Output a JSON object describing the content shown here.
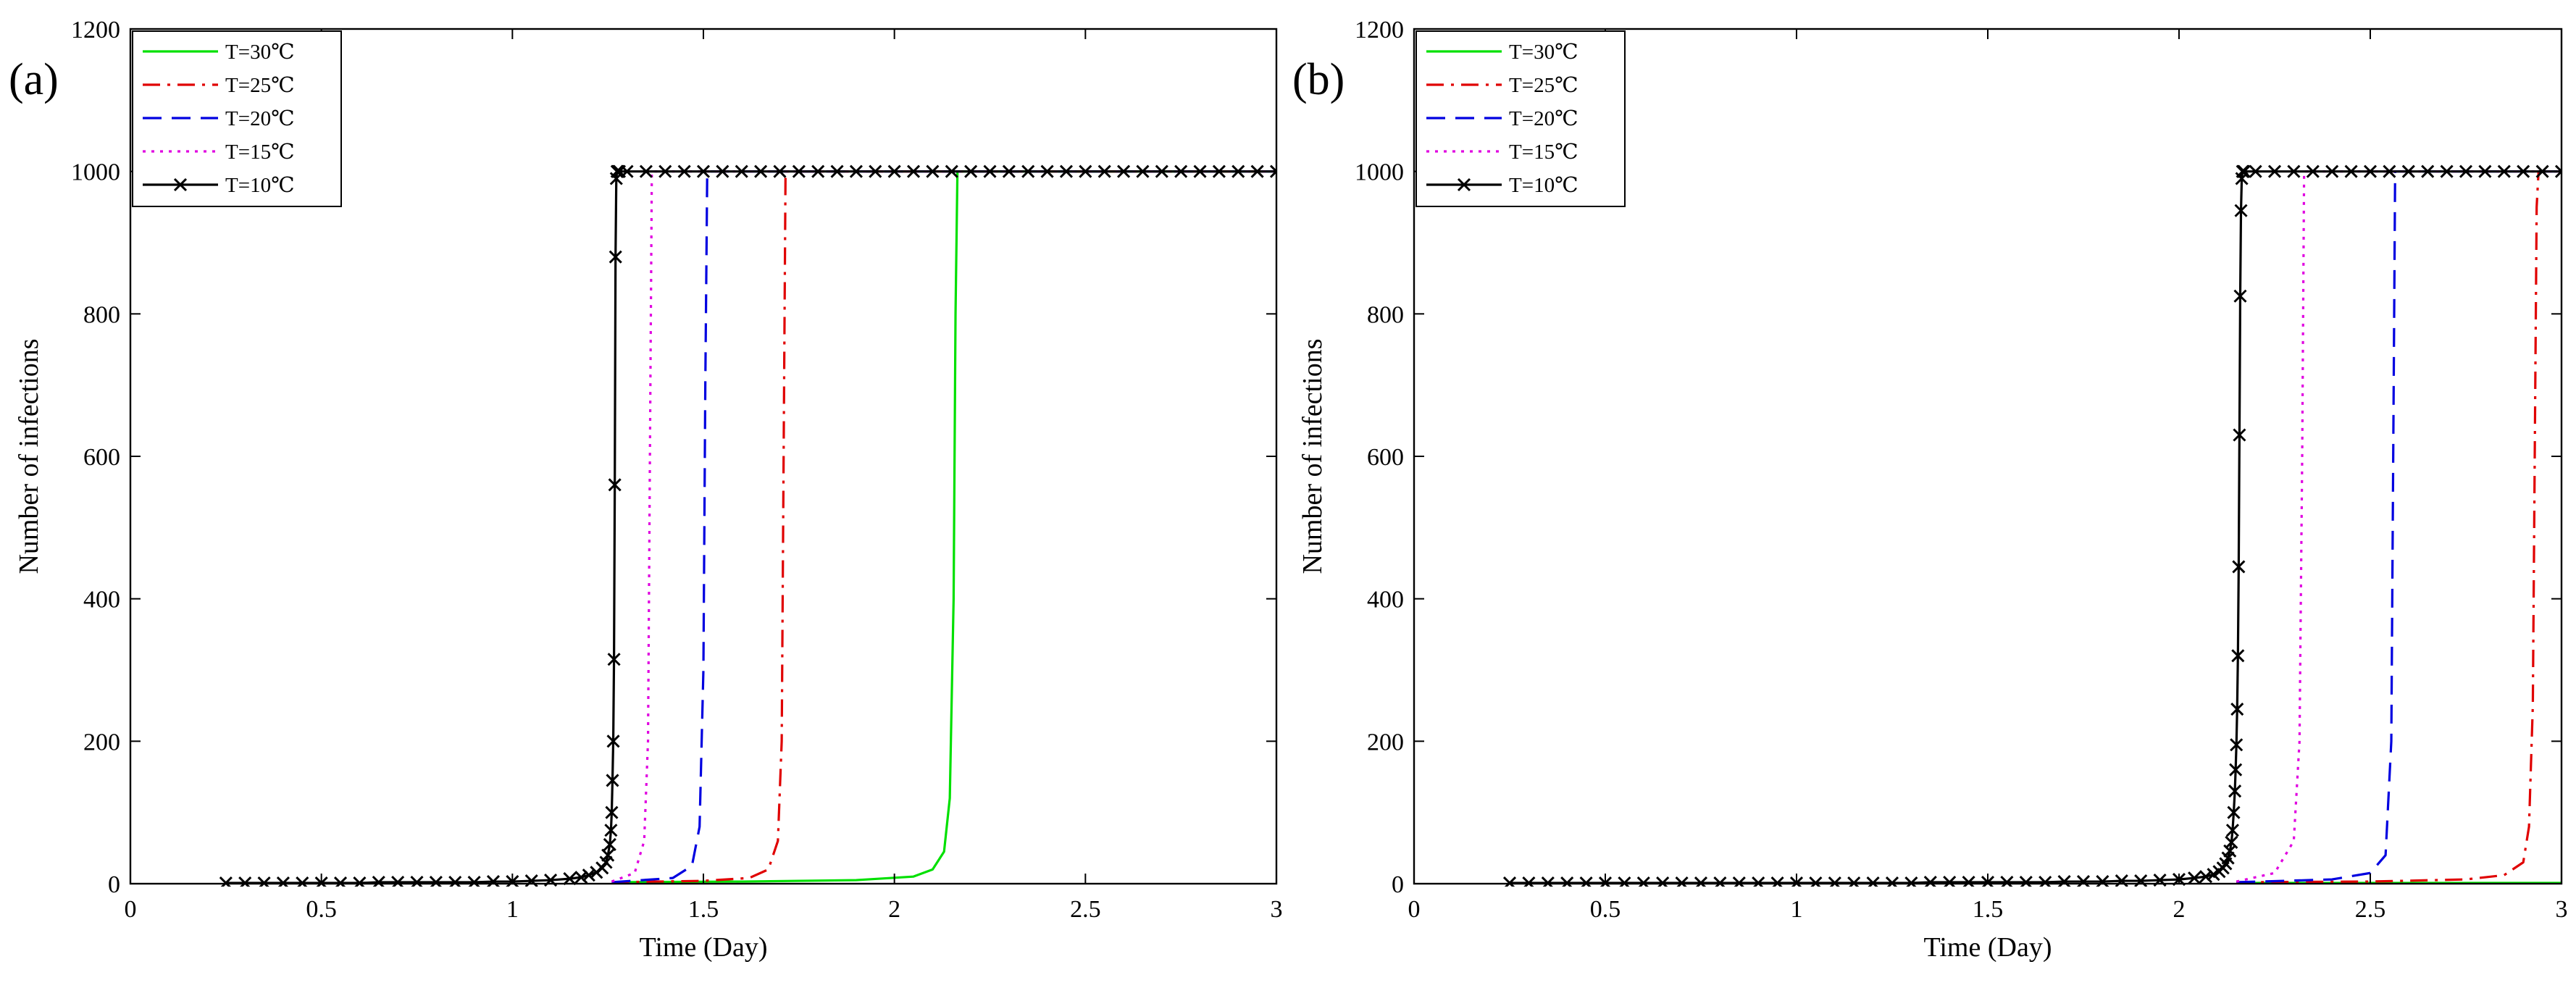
{
  "chart_data": [
    {
      "type": "line",
      "panel_label": "(a)",
      "xlabel": "Time (Day)",
      "ylabel": "Number of infections",
      "xlim": [
        0,
        3
      ],
      "ylim": [
        0,
        1200
      ],
      "xticks": [
        "0",
        "0.5",
        "1",
        "1.5",
        "2",
        "2.5",
        "3"
      ],
      "yticks": [
        "0",
        "200",
        "400",
        "600",
        "800",
        "1000",
        "1200"
      ],
      "grid": false,
      "legend_position": "top-left",
      "series": [
        {
          "name": "T=30℃",
          "color": "#00e000",
          "dash": "solid",
          "marker": "none",
          "x": [
            1.26,
            1.6,
            1.9,
            2.05,
            2.1,
            2.13,
            2.145,
            2.155,
            2.16,
            2.165,
            2.17,
            3.0
          ],
          "y": [
            2,
            3,
            5,
            10,
            20,
            45,
            120,
            400,
            800,
            1000,
            1000,
            1000
          ]
        },
        {
          "name": "T=25℃",
          "color": "#e00000",
          "dash": "dashdot",
          "marker": "none",
          "x": [
            1.26,
            1.5,
            1.62,
            1.67,
            1.695,
            1.705,
            1.71,
            1.715,
            1.72,
            3.0
          ],
          "y": [
            2,
            4,
            8,
            20,
            60,
            200,
            600,
            1000,
            1000,
            1000
          ]
        },
        {
          "name": "T=20℃",
          "color": "#0000e0",
          "dash": "dashed",
          "marker": "none",
          "x": [
            1.26,
            1.42,
            1.47,
            1.49,
            1.5,
            1.505,
            1.51,
            1.52,
            3.0
          ],
          "y": [
            2,
            8,
            25,
            80,
            300,
            700,
            1000,
            1000,
            1000
          ]
        },
        {
          "name": "T=15℃",
          "color": "#e000e0",
          "dash": "dotted",
          "marker": "none",
          "x": [
            1.26,
            1.32,
            1.345,
            1.355,
            1.36,
            1.365,
            1.37,
            3.0
          ],
          "y": [
            3,
            15,
            60,
            200,
            600,
            1000,
            1000,
            1000
          ]
        },
        {
          "name": "T=10℃",
          "color": "#000000",
          "dash": "solid",
          "marker": "x",
          "x": [
            0.25,
            0.3,
            0.35,
            0.4,
            0.45,
            0.5,
            0.55,
            0.6,
            0.65,
            0.7,
            0.75,
            0.8,
            0.85,
            0.9,
            0.95,
            1.0,
            1.05,
            1.1,
            1.15,
            1.18,
            1.2,
            1.22,
            1.235,
            1.245,
            1.25,
            1.255,
            1.258,
            1.26,
            1.262,
            1.264,
            1.266,
            1.268,
            1.27,
            1.272,
            1.274,
            1.276,
            1.278,
            1.28,
            1.3,
            1.35,
            1.4,
            1.45,
            1.5,
            1.55,
            1.6,
            1.65,
            1.7,
            1.75,
            1.8,
            1.85,
            1.9,
            1.95,
            2.0,
            2.05,
            2.1,
            2.15,
            2.2,
            2.25,
            2.3,
            2.35,
            2.4,
            2.45,
            2.5,
            2.55,
            2.6,
            2.65,
            2.7,
            2.75,
            2.8,
            2.85,
            2.9,
            2.95,
            3.0
          ],
          "y": [
            1,
            1,
            1,
            1,
            1,
            1,
            1,
            1,
            2,
            2,
            2,
            2,
            2,
            2,
            3,
            3,
            4,
            5,
            7,
            9,
            12,
            16,
            22,
            30,
            40,
            55,
            75,
            100,
            145,
            200,
            315,
            560,
            880,
            990,
            1000,
            1000,
            1000,
            1000,
            1000,
            1000,
            1000,
            1000,
            1000,
            1000,
            1000,
            1000,
            1000,
            1000,
            1000,
            1000,
            1000,
            1000,
            1000,
            1000,
            1000,
            1000,
            1000,
            1000,
            1000,
            1000,
            1000,
            1000,
            1000,
            1000,
            1000,
            1000,
            1000,
            1000,
            1000,
            1000,
            1000,
            1000,
            1000
          ]
        }
      ]
    },
    {
      "type": "line",
      "panel_label": "(b)",
      "xlabel": "Time (Day)",
      "ylabel": "Number of infections",
      "xlim": [
        0,
        3
      ],
      "ylim": [
        0,
        1200
      ],
      "xticks": [
        "0",
        "0.5",
        "1",
        "1.5",
        "2",
        "2.5",
        "3"
      ],
      "yticks": [
        "0",
        "200",
        "400",
        "600",
        "800",
        "1000",
        "1200"
      ],
      "grid": false,
      "legend_position": "top-left",
      "series": [
        {
          "name": "T=30℃",
          "color": "#00e000",
          "dash": "solid",
          "marker": "none",
          "x": [
            2.15,
            2.5,
            2.8,
            3.0
          ],
          "y": [
            1,
            1,
            1,
            1
          ]
        },
        {
          "name": "T=25℃",
          "color": "#e00000",
          "dash": "dashdot",
          "marker": "none",
          "x": [
            2.15,
            2.5,
            2.75,
            2.85,
            2.9,
            2.915,
            2.925,
            2.93,
            2.935,
            2.94,
            3.0
          ],
          "y": [
            2,
            3,
            6,
            12,
            30,
            80,
            250,
            600,
            950,
            1000,
            1000
          ]
        },
        {
          "name": "T=20℃",
          "color": "#0000e0",
          "dash": "dashed",
          "marker": "none",
          "x": [
            2.15,
            2.4,
            2.5,
            2.54,
            2.555,
            2.56,
            2.565,
            2.57,
            3.0
          ],
          "y": [
            2,
            6,
            15,
            40,
            200,
            600,
            1000,
            1000,
            1000
          ]
        },
        {
          "name": "T=15℃",
          "color": "#e000e0",
          "dash": "dotted",
          "marker": "none",
          "x": [
            2.15,
            2.25,
            2.3,
            2.315,
            2.322,
            2.327,
            2.332,
            3.0
          ],
          "y": [
            3,
            15,
            60,
            200,
            600,
            1000,
            1000,
            1000
          ]
        },
        {
          "name": "T=10℃",
          "color": "#000000",
          "dash": "solid",
          "marker": "x",
          "x": [
            0.25,
            0.3,
            0.35,
            0.4,
            0.45,
            0.5,
            0.55,
            0.6,
            0.65,
            0.7,
            0.75,
            0.8,
            0.85,
            0.9,
            0.95,
            1.0,
            1.05,
            1.1,
            1.15,
            1.2,
            1.25,
            1.3,
            1.35,
            1.4,
            1.45,
            1.5,
            1.55,
            1.6,
            1.65,
            1.7,
            1.75,
            1.8,
            1.85,
            1.9,
            1.95,
            2.0,
            2.04,
            2.07,
            2.09,
            2.105,
            2.115,
            2.122,
            2.128,
            2.133,
            2.137,
            2.14,
            2.143,
            2.146,
            2.148,
            2.15,
            2.152,
            2.154,
            2.156,
            2.158,
            2.16,
            2.162,
            2.164,
            2.166,
            2.168,
            2.17,
            2.2,
            2.25,
            2.3,
            2.35,
            2.4,
            2.45,
            2.5,
            2.55,
            2.6,
            2.65,
            2.7,
            2.75,
            2.8,
            2.85,
            2.9,
            2.95,
            3.0
          ],
          "y": [
            1,
            1,
            1,
            1,
            1,
            1,
            1,
            1,
            1,
            1,
            1,
            1,
            1,
            1,
            1,
            1,
            1,
            1,
            1,
            1,
            1,
            1,
            2,
            2,
            2,
            2,
            2,
            2,
            2,
            3,
            3,
            3,
            4,
            4,
            5,
            6,
            8,
            10,
            13,
            17,
            22,
            28,
            36,
            46,
            58,
            75,
            100,
            130,
            160,
            195,
            245,
            320,
            445,
            630,
            825,
            945,
            990,
            1000,
            1000,
            1000,
            1000,
            1000,
            1000,
            1000,
            1000,
            1000,
            1000,
            1000,
            1000,
            1000,
            1000,
            1000,
            1000,
            1000,
            1000,
            1000,
            1000
          ]
        }
      ]
    }
  ]
}
